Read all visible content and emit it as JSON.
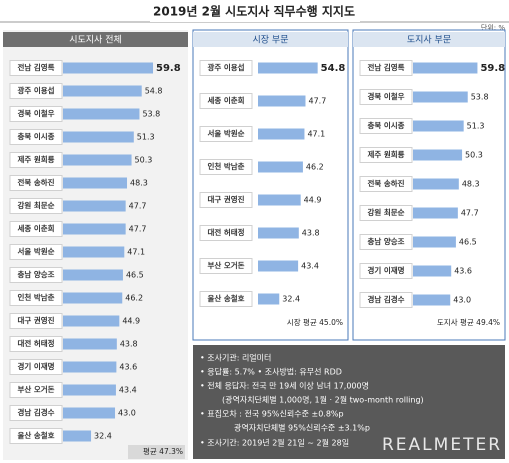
{
  "title": "2019년 2월 시도지사 직무수행 지지도",
  "unit": "단위: %",
  "chart_data": [
    {
      "type": "bar",
      "title": "시도지사 전체",
      "categories": [
        "전남 김영록",
        "광주 이용섭",
        "경북 이철우",
        "충북 이시종",
        "제주 원희룡",
        "전북 송하진",
        "강원 최문순",
        "세종 이춘희",
        "서울 박원순",
        "충남 양승조",
        "인천 박남춘",
        "대구 권영진",
        "대전 허태정",
        "경기 이재명",
        "부산 오거돈",
        "경남 김경수",
        "울산 송철호"
      ],
      "values": [
        59.8,
        54.8,
        53.8,
        51.3,
        50.3,
        48.3,
        47.7,
        47.7,
        47.1,
        46.5,
        46.2,
        44.9,
        43.8,
        43.6,
        43.4,
        43.0,
        32.4
      ],
      "value_labels": [
        "59.8",
        "54.8",
        "53.8",
        "51.3",
        "50.3",
        "48.3",
        "47.7",
        "47.7",
        "47.1",
        "46.5",
        "46.2",
        "44.9",
        "43.8",
        "43.6",
        "43.4",
        "43.0",
        "32.4"
      ],
      "color": "#8fb4e3",
      "xlim": [
        20,
        62
      ],
      "average": "평균 47.3%"
    },
    {
      "type": "bar",
      "title": "시장 부문",
      "categories": [
        "광주 이용섭",
        "세종 이춘희",
        "서울 박원순",
        "인천 박남춘",
        "대구 권영진",
        "대전 허태정",
        "부산 오거돈",
        "울산 송철호"
      ],
      "values": [
        54.8,
        47.7,
        47.1,
        46.2,
        44.9,
        43.8,
        43.4,
        32.4
      ],
      "value_labels": [
        "54.8",
        "47.7",
        "47.1",
        "46.2",
        "44.9",
        "43.8",
        "43.4",
        "32.4"
      ],
      "color": "#8fb4e3",
      "xlim": [
        20,
        62
      ],
      "average": "시장 평균 45.0%"
    },
    {
      "type": "bar",
      "title": "도지사 부문",
      "categories": [
        "전남 김영록",
        "경북 이철우",
        "충북 이시종",
        "제주 원희룡",
        "전북 송하진",
        "강원 최문순",
        "충남 양승조",
        "경기 이재명",
        "경남 김경수"
      ],
      "values": [
        59.8,
        53.8,
        51.3,
        50.3,
        48.3,
        47.7,
        46.5,
        43.6,
        43.0
      ],
      "value_labels": [
        "59.8",
        "53.8",
        "51.3",
        "50.3",
        "48.3",
        "47.7",
        "46.5",
        "43.6",
        "43.0"
      ],
      "color": "#8fb4e3",
      "xlim": [
        20,
        62
      ],
      "average": "도지사 평균 49.4%"
    }
  ],
  "notes": [
    "• 조사기관: 리얼미터",
    "• 응답률: 5.7% • 조사방법: 유무선 RDD",
    "• 전체 응답자: 전국 만 19세 이상 남녀 17,000명",
    "(광역자치단체별 1,000명, 1월 · 2월 two-month rolling)",
    "• 표집오차 : 전국 95%신뢰수준 ±0.8%p",
    "광역자치단체별 95%신뢰수준 ±3.1%p",
    "• 조사기간: 2019년 2월 21일 ~ 2월 28일"
  ],
  "logo": "REALMETER"
}
